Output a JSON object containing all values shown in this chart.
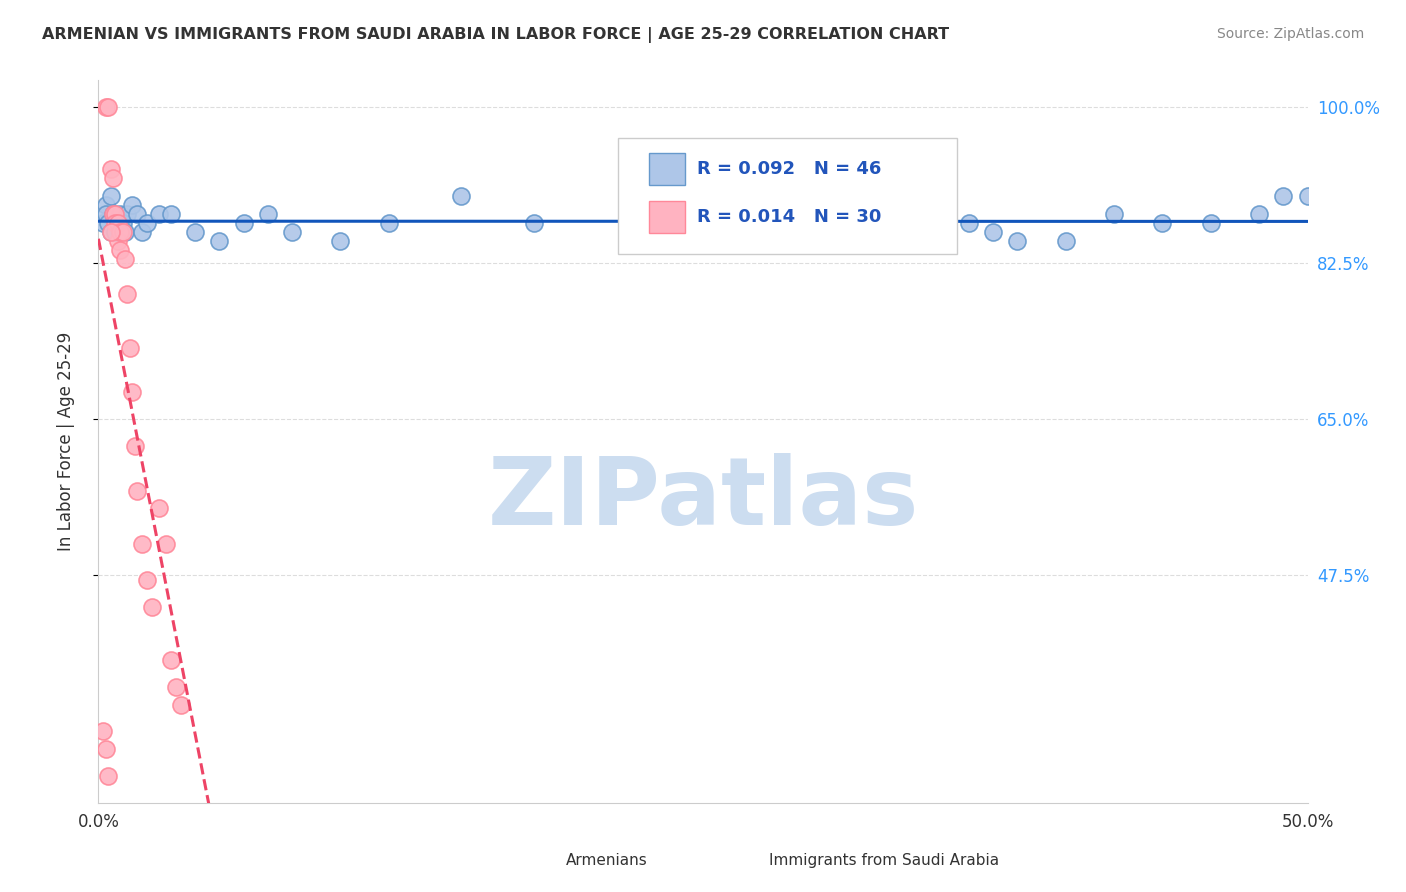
{
  "title": "ARMENIAN VS IMMIGRANTS FROM SAUDI ARABIA IN LABOR FORCE | AGE 25-29 CORRELATION CHART",
  "source": "Source: ZipAtlas.com",
  "ylabel": "In Labor Force | Age 25-29",
  "legend_label1": "Armenians",
  "legend_label2": "Immigrants from Saudi Arabia",
  "r1": "0.092",
  "n1": "46",
  "r2": "0.014",
  "n2": "30",
  "blue_fill": "#AEC6E8",
  "blue_edge": "#6699CC",
  "pink_fill": "#FFB3C1",
  "pink_edge": "#FF8899",
  "trend_blue": "#1155BB",
  "trend_pink": "#EE4466",
  "blue_scatter_x": [
    0.002,
    0.003,
    0.003,
    0.004,
    0.005,
    0.005,
    0.006,
    0.007,
    0.007,
    0.008,
    0.009,
    0.009,
    0.01,
    0.011,
    0.012,
    0.014,
    0.016,
    0.018,
    0.02,
    0.025,
    0.03,
    0.04,
    0.05,
    0.06,
    0.07,
    0.08,
    0.1,
    0.12,
    0.15,
    0.18,
    0.22,
    0.27,
    0.32,
    0.37,
    0.4,
    0.44,
    0.48,
    0.5,
    0.28,
    0.33,
    0.36,
    0.42,
    0.46,
    0.49,
    0.35,
    0.38
  ],
  "blue_scatter_y": [
    0.87,
    0.89,
    0.88,
    0.87,
    0.86,
    0.9,
    0.88,
    0.86,
    0.88,
    0.87,
    0.86,
    0.88,
    0.87,
    0.86,
    0.88,
    0.89,
    0.88,
    0.86,
    0.87,
    0.88,
    0.88,
    0.86,
    0.85,
    0.87,
    0.88,
    0.86,
    0.85,
    0.87,
    0.9,
    0.87,
    0.88,
    0.87,
    0.85,
    0.86,
    0.85,
    0.87,
    0.88,
    0.9,
    0.88,
    0.86,
    0.87,
    0.88,
    0.87,
    0.9,
    0.86,
    0.85
  ],
  "pink_scatter_x": [
    0.003,
    0.004,
    0.005,
    0.006,
    0.006,
    0.007,
    0.007,
    0.008,
    0.008,
    0.009,
    0.009,
    0.01,
    0.011,
    0.012,
    0.013,
    0.014,
    0.015,
    0.016,
    0.018,
    0.02,
    0.022,
    0.025,
    0.028,
    0.03,
    0.032,
    0.034,
    0.002,
    0.003,
    0.004,
    0.005
  ],
  "pink_scatter_y": [
    1.0,
    1.0,
    0.93,
    0.92,
    0.88,
    0.88,
    0.87,
    0.87,
    0.85,
    0.86,
    0.84,
    0.86,
    0.83,
    0.79,
    0.73,
    0.68,
    0.62,
    0.57,
    0.51,
    0.47,
    0.44,
    0.55,
    0.51,
    0.38,
    0.35,
    0.33,
    0.3,
    0.28,
    0.25,
    0.86
  ],
  "xlim": [
    0.0,
    0.5
  ],
  "ylim": [
    0.22,
    1.03
  ],
  "ytick_vals": [
    1.0,
    0.825,
    0.65,
    0.475
  ],
  "ytick_labels": [
    "100.0%",
    "82.5%",
    "65.0%",
    "47.5%"
  ],
  "xtick_vals": [
    0.0,
    0.5
  ],
  "xtick_labels": [
    "0.0%",
    "50.0%"
  ],
  "grid_color": "#DDDDDD",
  "bg_color": "#FFFFFF",
  "watermark_text": "ZIPatlas",
  "watermark_color": "#CCDDF0",
  "legend_box_color": "#AAAAAA",
  "text_color": "#333333",
  "source_color": "#888888",
  "right_axis_color": "#3399FF"
}
